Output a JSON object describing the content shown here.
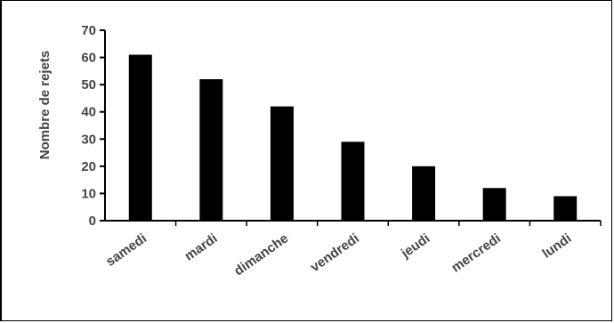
{
  "chart_data": {
    "type": "bar",
    "title": "",
    "xlabel": "",
    "ylabel": "Nombre de rejets",
    "categories": [
      "samedi",
      "mardi",
      "dimanche",
      "vendredi",
      "jeudi",
      "mercredi",
      "lundi"
    ],
    "values": [
      61,
      52,
      42,
      29,
      20,
      12,
      9
    ],
    "ylim": [
      0,
      70
    ],
    "yticks": [
      0,
      10,
      20,
      30,
      40,
      50,
      60,
      70
    ],
    "grid": false,
    "bar_color": "#000000",
    "axis_color": "#000000",
    "text_color": "#444444"
  }
}
